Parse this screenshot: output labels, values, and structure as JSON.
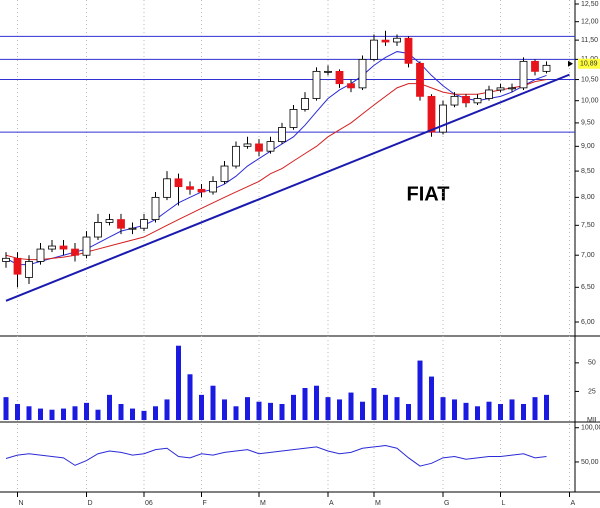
{
  "chart_data": {
    "type": "candlestick",
    "annotation": "FIAT",
    "log_scale": true,
    "categories": [
      null,
      "N",
      null,
      null,
      null,
      null,
      null,
      "D",
      null,
      null,
      null,
      null,
      "06",
      null,
      null,
      null,
      null,
      "F",
      null,
      null,
      null,
      null,
      "M",
      null,
      null,
      null,
      null,
      null,
      "A",
      null,
      null,
      null,
      "M",
      null,
      null,
      null,
      null,
      null,
      "G",
      null,
      null,
      null,
      null,
      "L",
      null,
      null,
      null,
      null,
      null,
      "A"
    ],
    "open": [
      6.9,
      6.95,
      6.65,
      6.9,
      7.1,
      7.15,
      7.1,
      7.0,
      7.3,
      7.55,
      7.6,
      7.45,
      7.45,
      7.6,
      8.0,
      8.35,
      8.2,
      8.15,
      8.1,
      8.3,
      8.6,
      9.0,
      9.05,
      8.9,
      9.1,
      9.4,
      9.8,
      10.05,
      10.7,
      10.7,
      10.4,
      10.3,
      11.0,
      11.5,
      11.45,
      11.55,
      10.9,
      10.1,
      9.3,
      9.9,
      10.1,
      9.95,
      10.05,
      10.25,
      10.3,
      10.3,
      10.95,
      10.7,
      null,
      null
    ],
    "high": [
      7.05,
      7.05,
      7.0,
      7.2,
      7.25,
      7.25,
      7.2,
      7.4,
      7.7,
      7.7,
      7.7,
      7.55,
      7.7,
      8.1,
      8.5,
      8.45,
      8.3,
      8.25,
      8.4,
      8.7,
      9.1,
      9.2,
      9.15,
      9.2,
      9.5,
      9.9,
      10.2,
      10.8,
      10.85,
      10.75,
      10.5,
      11.1,
      11.65,
      11.75,
      11.65,
      11.6,
      10.95,
      10.15,
      10.0,
      10.2,
      10.15,
      10.15,
      10.35,
      10.4,
      10.4,
      11.05,
      11.0,
      10.95,
      null,
      null
    ],
    "low": [
      6.8,
      6.5,
      6.55,
      6.85,
      7.05,
      7.0,
      6.9,
      6.95,
      7.25,
      7.5,
      7.35,
      7.35,
      7.4,
      7.55,
      7.95,
      7.85,
      8.05,
      8.0,
      8.05,
      8.25,
      8.55,
      8.95,
      8.8,
      8.85,
      9.05,
      9.35,
      9.75,
      10.0,
      10.6,
      10.3,
      10.2,
      10.25,
      10.95,
      11.35,
      11.35,
      10.8,
      10.0,
      9.2,
      9.25,
      9.85,
      9.85,
      9.9,
      10.0,
      10.2,
      10.2,
      10.25,
      10.6,
      10.65,
      null,
      null
    ],
    "close": [
      6.95,
      6.7,
      6.9,
      7.1,
      7.15,
      7.1,
      7.0,
      7.3,
      7.55,
      7.6,
      7.45,
      7.45,
      7.6,
      8.0,
      8.35,
      8.2,
      8.15,
      8.1,
      8.3,
      8.6,
      9.0,
      9.05,
      8.9,
      9.1,
      9.4,
      9.8,
      10.05,
      10.7,
      10.7,
      10.4,
      10.3,
      11.0,
      11.5,
      11.45,
      11.55,
      10.9,
      10.1,
      9.3,
      9.9,
      10.1,
      9.95,
      10.05,
      10.25,
      10.3,
      10.3,
      10.95,
      10.7,
      10.85,
      null,
      null
    ],
    "up_color": "#ffffff",
    "down_color": "#e8141c",
    "ma": [
      {
        "color": "#2b2bd6",
        "values": [
          6.95,
          6.85,
          6.85,
          6.9,
          6.95,
          7.0,
          7.05,
          7.1,
          7.2,
          7.3,
          7.4,
          7.45,
          7.5,
          7.6,
          7.75,
          7.9,
          8.0,
          8.1,
          8.15,
          8.25,
          8.4,
          8.6,
          8.75,
          8.9,
          9.05,
          9.2,
          9.45,
          9.75,
          10.05,
          10.25,
          10.4,
          10.6,
          10.85,
          11.05,
          11.2,
          11.15,
          10.9,
          10.6,
          10.35,
          10.15,
          10.05,
          10.0,
          10.05,
          10.1,
          10.2,
          10.35,
          10.5,
          10.6,
          null,
          null
        ]
      },
      {
        "color": "#d42020",
        "values": [
          7.0,
          6.95,
          6.93,
          6.93,
          6.95,
          6.97,
          7.0,
          7.05,
          7.1,
          7.15,
          7.2,
          7.25,
          7.3,
          7.4,
          7.5,
          7.6,
          7.7,
          7.8,
          7.9,
          8.0,
          8.1,
          8.2,
          8.3,
          8.45,
          8.55,
          8.7,
          8.85,
          9.0,
          9.2,
          9.35,
          9.5,
          9.7,
          9.9,
          10.1,
          10.3,
          10.4,
          10.4,
          10.3,
          10.2,
          10.15,
          10.15,
          10.15,
          10.2,
          10.25,
          10.3,
          10.35,
          10.45,
          10.5,
          null,
          null
        ]
      }
    ],
    "hlines": [
      11.6,
      11.0,
      10.5,
      9.3
    ],
    "trendline": [
      6.3,
      10.62
    ],
    "last_price": {
      "value": 10.89,
      "label": "10,89"
    },
    "ylim": [
      6,
      12.5
    ],
    "yticks": [
      {
        "value": 6,
        "label": "6,00"
      },
      {
        "value": 6.5,
        "label": "6,50"
      },
      {
        "value": 7,
        "label": "7,00"
      },
      {
        "value": 7.5,
        "label": "7,50"
      },
      {
        "value": 8,
        "label": "8,00"
      },
      {
        "value": 8.5,
        "label": "8,50"
      },
      {
        "value": 9,
        "label": "9,00"
      },
      {
        "value": 9.5,
        "label": "9,50"
      },
      {
        "value": 10,
        "label": "10,00"
      },
      {
        "value": 10.5,
        "label": "10,50"
      },
      {
        "value": 11,
        "label": "11,00"
      },
      {
        "value": 11.5,
        "label": "11,50"
      },
      {
        "value": 12,
        "label": "12,00"
      },
      {
        "value": 12.5,
        "label": "12,50"
      }
    ],
    "volume": {
      "label": "MIL",
      "color": "#1a1ae0",
      "values": [
        20,
        14,
        12,
        10,
        9,
        10,
        12,
        15,
        9,
        22,
        14,
        10,
        8,
        12,
        18,
        65,
        40,
        22,
        30,
        18,
        12,
        20,
        16,
        15,
        14,
        22,
        28,
        30,
        20,
        18,
        24,
        16,
        28,
        22,
        20,
        14,
        52,
        38,
        20,
        18,
        15,
        12,
        16,
        14,
        18,
        14,
        20,
        22,
        null,
        null
      ],
      "ylim": [
        0,
        70
      ],
      "yticks": [
        25,
        50
      ]
    },
    "oscillator": {
      "color": "#2b2bd6",
      "values": [
        55,
        60,
        62,
        60,
        58,
        56,
        45,
        52,
        62,
        66,
        64,
        60,
        62,
        68,
        70,
        58,
        56,
        62,
        60,
        64,
        66,
        68,
        62,
        64,
        66,
        68,
        70,
        72,
        66,
        62,
        64,
        70,
        72,
        74,
        70,
        56,
        44,
        48,
        56,
        58,
        54,
        56,
        58,
        58,
        60,
        62,
        56,
        58,
        null,
        null
      ],
      "ylim": [
        9,
        104
      ],
      "yticks": [
        {
          "value": 50,
          "label": "50,00"
        },
        {
          "value": 100,
          "label": "100,00"
        }
      ]
    }
  }
}
